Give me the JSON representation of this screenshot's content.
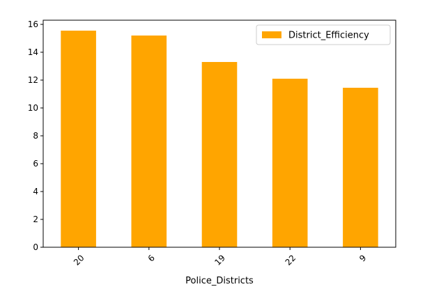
{
  "chart_data": {
    "type": "bar",
    "categories": [
      "20",
      "6",
      "19",
      "22",
      "9"
    ],
    "series": [
      {
        "name": "District_Efficiency",
        "values": [
          15.55,
          15.2,
          13.3,
          12.1,
          11.45
        ]
      }
    ],
    "xlabel": "Police_Districts",
    "ylabel": "",
    "ylim": [
      0,
      16.3
    ],
    "yticks": [
      0,
      2,
      4,
      6,
      8,
      10,
      12,
      14,
      16
    ],
    "grid": false,
    "legend": "top-right",
    "colors": {
      "bar": "#ffa500",
      "axis": "#000000",
      "legend_border": "#cccccc"
    }
  }
}
